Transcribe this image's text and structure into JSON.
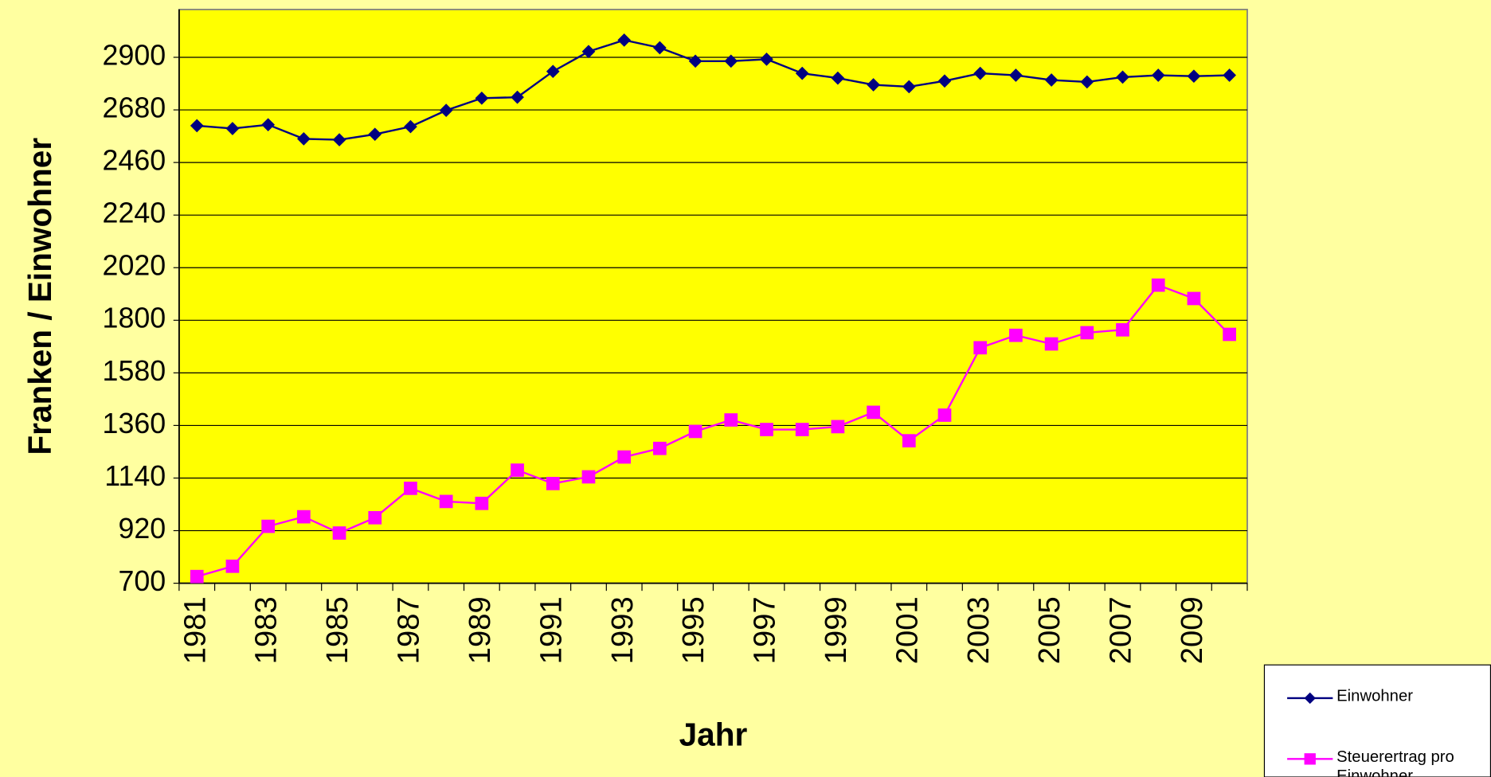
{
  "chart_data": {
    "type": "line",
    "x_label": "Jahr",
    "y_label": "Franken / Einwohner",
    "categories": [
      "1981",
      null,
      "1983",
      null,
      "1985",
      null,
      "1987",
      null,
      "1989",
      null,
      "1991",
      null,
      "1993",
      null,
      "1995",
      null,
      "1997",
      null,
      "1999",
      null,
      "2001",
      null,
      "2003",
      null,
      "2005",
      null,
      "2007",
      null,
      "2009",
      null
    ],
    "series": [
      {
        "name": "Einwohner",
        "color": "#000080",
        "marker": "diamond",
        "values": [
          2614,
          2602,
          2618,
          2559,
          2555,
          2578,
          2610,
          2678,
          2729,
          2733,
          2841,
          2924,
          2972,
          2940,
          2884,
          2884,
          2892,
          2833,
          2813,
          2785,
          2777,
          2801,
          2833,
          2825,
          2805,
          2797,
          2817,
          2825,
          2821,
          2825
        ]
      },
      {
        "name": "Steuerertrag pro Einwohner",
        "color": "#ff00ff",
        "marker": "square",
        "values": [
          728,
          771,
          938,
          978,
          910,
          974,
          1097,
          1042,
          1034,
          1173,
          1117,
          1145,
          1228,
          1264,
          1335,
          1383,
          1343,
          1343,
          1355,
          1415,
          1296,
          1403,
          1685,
          1737,
          1701,
          1748,
          1760,
          1947,
          1891,
          1741
        ]
      }
    ],
    "ylim": [
      700,
      3100
    ],
    "yticks": [
      700,
      920,
      1140,
      1360,
      1580,
      1800,
      2020,
      2240,
      2460,
      2680,
      2900
    ],
    "grid": true,
    "plot_color": "#ffff00",
    "legend": "bottom-right"
  }
}
